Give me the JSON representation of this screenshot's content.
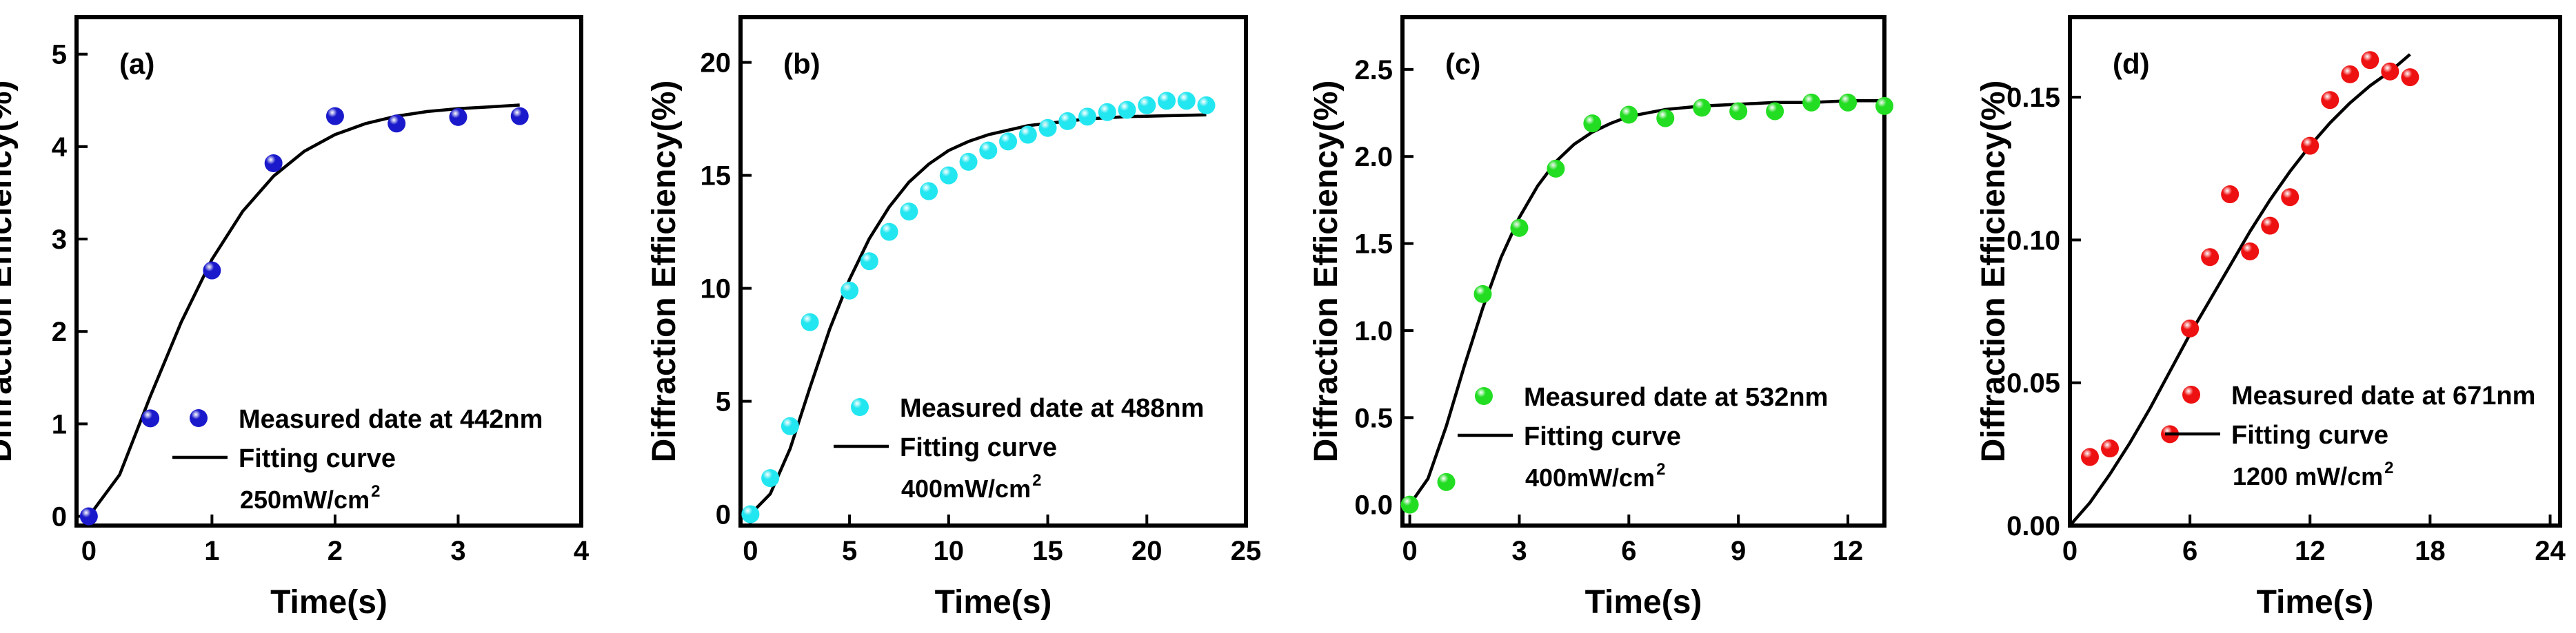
{
  "chart_data": [
    {
      "type": "scatter",
      "panel_label": "(a)",
      "xlabel": "Time(s)",
      "ylabel": "Diffraction Efficiency(%)",
      "xlim": [
        -0.1,
        4
      ],
      "ylim": [
        -0.1,
        5.4
      ],
      "xticks": [
        "0",
        "1",
        "2",
        "3",
        "4"
      ],
      "xtick_values": [
        0,
        1,
        2,
        3,
        4
      ],
      "yticks": [
        "0",
        "1",
        "2",
        "3",
        "4",
        "5"
      ],
      "ytick_values": [
        0,
        1,
        2,
        3,
        4,
        5
      ],
      "marker_color": "#1a1acc",
      "series": [
        {
          "name": "Measured date at 442nm",
          "kind": "scatter",
          "x": [
            0,
            0.5,
            1.0,
            1.5,
            2.0,
            2.5,
            3.0,
            3.5
          ],
          "y": [
            0,
            1.06,
            2.66,
            3.82,
            4.33,
            4.25,
            4.32,
            4.33
          ]
        },
        {
          "name": "Fitting curve",
          "kind": "line",
          "x": [
            0,
            0.25,
            0.5,
            0.75,
            1.0,
            1.25,
            1.5,
            1.75,
            2.0,
            2.25,
            2.5,
            2.75,
            3.0,
            3.25,
            3.5
          ],
          "y": [
            0,
            0.45,
            1.3,
            2.1,
            2.78,
            3.3,
            3.68,
            3.95,
            4.13,
            4.25,
            4.33,
            4.38,
            4.41,
            4.43,
            4.45
          ]
        }
      ],
      "legend": {
        "scatter": "Measured date at 442nm",
        "line": "Fitting curve",
        "note": "250mW/cm",
        "note_sup": "2",
        "placement": "lower-right"
      }
    },
    {
      "type": "scatter",
      "panel_label": "(b)",
      "xlabel": "Time(s)",
      "ylabel": "Diffraction Efficiency(%)",
      "xlim": [
        -0.5,
        25
      ],
      "ylim": [
        -0.5,
        22
      ],
      "xticks": [
        "0",
        "5",
        "10",
        "15",
        "20",
        "25"
      ],
      "xtick_values": [
        0,
        5,
        10,
        15,
        20,
        25
      ],
      "yticks": [
        "0",
        "5",
        "10",
        "15",
        "20"
      ],
      "ytick_values": [
        0,
        5,
        10,
        15,
        20
      ],
      "marker_color": "#22e6f0",
      "series": [
        {
          "name": "Measured date at 488nm",
          "kind": "scatter",
          "x": [
            0,
            1,
            2,
            3,
            5,
            6,
            7,
            8,
            9,
            10,
            11,
            12,
            13,
            14,
            15,
            16,
            17,
            18,
            19,
            20,
            21,
            22,
            23
          ],
          "y": [
            0,
            1.6,
            3.9,
            8.5,
            9.9,
            11.2,
            12.5,
            13.4,
            14.3,
            15.0,
            15.6,
            16.1,
            16.5,
            16.8,
            17.1,
            17.4,
            17.6,
            17.8,
            17.9,
            18.1,
            18.3,
            18.3,
            18.1
          ]
        },
        {
          "name": "Fitting curve",
          "kind": "line",
          "x": [
            0,
            1,
            2,
            3,
            4,
            5,
            6,
            7,
            8,
            9,
            10,
            11,
            12,
            13,
            14,
            15,
            16,
            17,
            18,
            19,
            20,
            21,
            22,
            23
          ],
          "y": [
            0,
            0.9,
            2.9,
            5.6,
            8.2,
            10.4,
            12.2,
            13.6,
            14.7,
            15.5,
            16.1,
            16.5,
            16.8,
            17.0,
            17.2,
            17.3,
            17.4,
            17.5,
            17.55,
            17.6,
            17.62,
            17.64,
            17.66,
            17.68
          ]
        }
      ],
      "legend": {
        "scatter": "Measured date at 488nm",
        "line": "Fitting curve",
        "note": "400mW/cm",
        "note_sup": "2",
        "placement": "lower-right"
      }
    },
    {
      "type": "scatter",
      "panel_label": "(c)",
      "xlabel": "Time(s)",
      "ylabel": "Diffraction Efficiency(%)",
      "xlim": [
        -0.2,
        13
      ],
      "ylim": [
        -0.12,
        2.8
      ],
      "xticks": [
        "0",
        "3",
        "6",
        "9",
        "12"
      ],
      "xtick_values": [
        0,
        3,
        6,
        9,
        12
      ],
      "yticks": [
        "0.0",
        "0.5",
        "1.0",
        "1.5",
        "2.0",
        "2.5"
      ],
      "ytick_values": [
        0,
        0.5,
        1.0,
        1.5,
        2.0,
        2.5
      ],
      "marker_color": "#22dd22",
      "series": [
        {
          "name": "Measured date at 532nm",
          "kind": "scatter",
          "x": [
            0,
            1,
            2,
            3,
            4,
            5,
            6,
            7,
            8,
            9,
            10,
            11,
            12,
            13
          ],
          "y": [
            0,
            0.13,
            1.21,
            1.59,
            1.93,
            2.19,
            2.24,
            2.22,
            2.28,
            2.26,
            2.26,
            2.31,
            2.31,
            2.29
          ]
        },
        {
          "name": "Fitting curve",
          "kind": "line",
          "x": [
            0,
            0.5,
            1,
            1.5,
            2,
            2.5,
            3,
            3.5,
            4,
            4.5,
            5,
            5.5,
            6,
            7,
            8,
            9,
            10,
            11,
            12,
            13
          ],
          "y": [
            0,
            0.15,
            0.45,
            0.8,
            1.13,
            1.42,
            1.65,
            1.83,
            1.97,
            2.07,
            2.14,
            2.19,
            2.23,
            2.27,
            2.29,
            2.3,
            2.31,
            2.31,
            2.32,
            2.32
          ]
        }
      ],
      "legend": {
        "scatter": "Measured date at 532nm",
        "line": "Fitting curve",
        "note": "400mW/cm",
        "note_sup": "2",
        "placement": "lower-right"
      }
    },
    {
      "type": "scatter",
      "panel_label": "(d)",
      "xlabel": "Time(s)",
      "ylabel": "Diffraction Efficiency(%)",
      "xlim": [
        0,
        24.5
      ],
      "ylim": [
        0,
        0.178
      ],
      "xticks": [
        "0",
        "6",
        "12",
        "18",
        "24"
      ],
      "xtick_values": [
        0,
        6,
        12,
        18,
        24
      ],
      "yticks": [
        "0.00",
        "0.05",
        "0.10",
        "0.15"
      ],
      "ytick_values": [
        0,
        0.05,
        0.1,
        0.15
      ],
      "marker_color": "#ee1111",
      "series": [
        {
          "name": "Measured date at 671nm",
          "kind": "scatter",
          "x": [
            1,
            2,
            5,
            6,
            7,
            8,
            9,
            10,
            11,
            12,
            13,
            14,
            15,
            16,
            17
          ],
          "y": [
            0.024,
            0.027,
            0.032,
            0.069,
            0.094,
            0.116,
            0.096,
            0.105,
            0.115,
            0.133,
            0.149,
            0.158,
            0.163,
            0.159,
            0.157
          ]
        },
        {
          "name": "Fitting curve",
          "kind": "line",
          "x": [
            0,
            1,
            2,
            3,
            4,
            5,
            6,
            7,
            8,
            9,
            10,
            11,
            12,
            13,
            14,
            15,
            16,
            17
          ],
          "y": [
            0,
            0.008,
            0.018,
            0.029,
            0.041,
            0.054,
            0.067,
            0.079,
            0.091,
            0.103,
            0.114,
            0.124,
            0.133,
            0.141,
            0.148,
            0.154,
            0.159,
            0.165
          ]
        }
      ],
      "legend": {
        "scatter": "Measured date at 671nm",
        "line": "Fitting curve",
        "note": "1200 mW/cm",
        "note_sup": "2",
        "placement": "lower-right"
      }
    }
  ]
}
